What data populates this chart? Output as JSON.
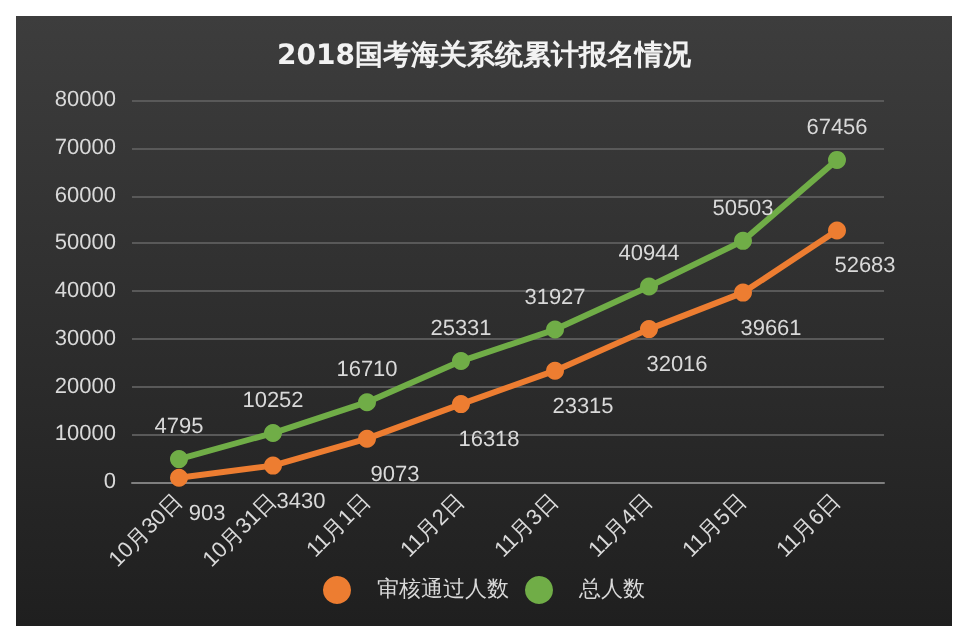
{
  "chart_data": {
    "type": "line",
    "title": "2018国考海关系统累计报名情况",
    "categories": [
      "10月30日",
      "10月31日",
      "11月1日",
      "11月2日",
      "11月3日",
      "11月4日",
      "11月5日",
      "11月6日"
    ],
    "series": [
      {
        "name": "审核通过人数",
        "color": "#ed7d31",
        "values": [
          903,
          3430,
          9073,
          16318,
          23315,
          32016,
          39661,
          52683
        ]
      },
      {
        "name": "总人数",
        "color": "#70ad47",
        "values": [
          4795,
          10252,
          16710,
          25331,
          31927,
          40944,
          50503,
          67456
        ]
      }
    ],
    "ylim": [
      0,
      80000
    ],
    "yticks": [
      0,
      10000,
      20000,
      30000,
      40000,
      50000,
      60000,
      70000,
      80000
    ],
    "grid": "y",
    "legend": "bottom",
    "marker": "circle",
    "line_style": "solid",
    "data_labels": true
  }
}
